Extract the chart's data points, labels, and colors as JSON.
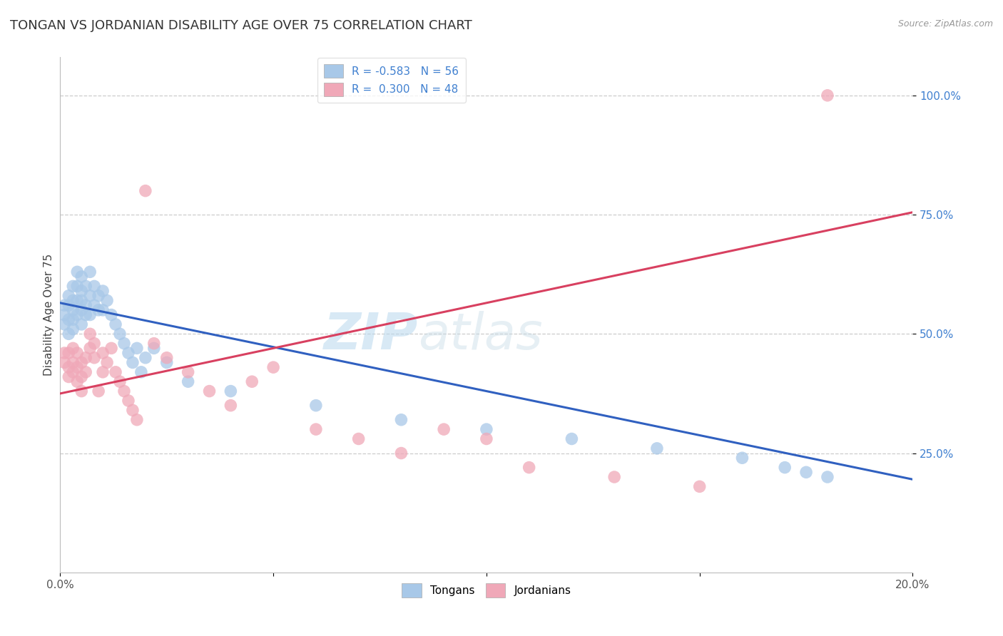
{
  "title": "TONGAN VS JORDANIAN DISABILITY AGE OVER 75 CORRELATION CHART",
  "source_text": "Source: ZipAtlas.com",
  "ylabel": "Disability Age Over 75",
  "xlim": [
    0.0,
    0.2
  ],
  "ylim": [
    0.0,
    1.08
  ],
  "tongan_color": "#a8c8e8",
  "jordanian_color": "#f0a8b8",
  "tongan_line_color": "#3060c0",
  "jordanian_line_color": "#d84060",
  "ytick_color": "#4080d0",
  "tongan_R": -0.583,
  "tongan_N": 56,
  "jordanian_R": 0.3,
  "jordanian_N": 48,
  "background_color": "#ffffff",
  "grid_color": "#cccccc",
  "watermark_zip": "ZIP",
  "watermark_atlas": "atlas",
  "title_fontsize": 13,
  "label_fontsize": 11,
  "tick_fontsize": 11,
  "tongan_x": [
    0.001,
    0.001,
    0.001,
    0.002,
    0.002,
    0.002,
    0.002,
    0.003,
    0.003,
    0.003,
    0.003,
    0.003,
    0.004,
    0.004,
    0.004,
    0.004,
    0.005,
    0.005,
    0.005,
    0.005,
    0.005,
    0.006,
    0.006,
    0.006,
    0.007,
    0.007,
    0.007,
    0.008,
    0.008,
    0.009,
    0.009,
    0.01,
    0.01,
    0.011,
    0.012,
    0.013,
    0.014,
    0.015,
    0.016,
    0.017,
    0.018,
    0.019,
    0.02,
    0.022,
    0.025,
    0.03,
    0.04,
    0.06,
    0.08,
    0.1,
    0.12,
    0.14,
    0.16,
    0.17,
    0.175,
    0.18
  ],
  "tongan_y": [
    0.52,
    0.54,
    0.56,
    0.5,
    0.53,
    0.56,
    0.58,
    0.51,
    0.53,
    0.55,
    0.57,
    0.6,
    0.54,
    0.57,
    0.6,
    0.63,
    0.52,
    0.55,
    0.57,
    0.59,
    0.62,
    0.54,
    0.56,
    0.6,
    0.54,
    0.58,
    0.63,
    0.56,
    0.6,
    0.55,
    0.58,
    0.55,
    0.59,
    0.57,
    0.54,
    0.52,
    0.5,
    0.48,
    0.46,
    0.44,
    0.47,
    0.42,
    0.45,
    0.47,
    0.44,
    0.4,
    0.38,
    0.35,
    0.32,
    0.3,
    0.28,
    0.26,
    0.24,
    0.22,
    0.21,
    0.2
  ],
  "jordanian_x": [
    0.001,
    0.001,
    0.002,
    0.002,
    0.002,
    0.003,
    0.003,
    0.003,
    0.004,
    0.004,
    0.004,
    0.005,
    0.005,
    0.005,
    0.006,
    0.006,
    0.007,
    0.007,
    0.008,
    0.008,
    0.009,
    0.01,
    0.01,
    0.011,
    0.012,
    0.013,
    0.014,
    0.015,
    0.016,
    0.017,
    0.018,
    0.02,
    0.022,
    0.025,
    0.03,
    0.035,
    0.04,
    0.045,
    0.05,
    0.06,
    0.07,
    0.08,
    0.09,
    0.1,
    0.11,
    0.13,
    0.15,
    0.18
  ],
  "jordanian_y": [
    0.44,
    0.46,
    0.41,
    0.43,
    0.46,
    0.42,
    0.44,
    0.47,
    0.4,
    0.43,
    0.46,
    0.38,
    0.41,
    0.44,
    0.42,
    0.45,
    0.47,
    0.5,
    0.45,
    0.48,
    0.38,
    0.42,
    0.46,
    0.44,
    0.47,
    0.42,
    0.4,
    0.38,
    0.36,
    0.34,
    0.32,
    0.8,
    0.48,
    0.45,
    0.42,
    0.38,
    0.35,
    0.4,
    0.43,
    0.3,
    0.28,
    0.25,
    0.3,
    0.28,
    0.22,
    0.2,
    0.18,
    1.0
  ],
  "tongan_line_x": [
    0.0,
    0.2
  ],
  "tongan_line_y": [
    0.565,
    0.195
  ],
  "jordanian_line_x": [
    0.0,
    0.2
  ],
  "jordanian_line_y": [
    0.375,
    0.755
  ]
}
